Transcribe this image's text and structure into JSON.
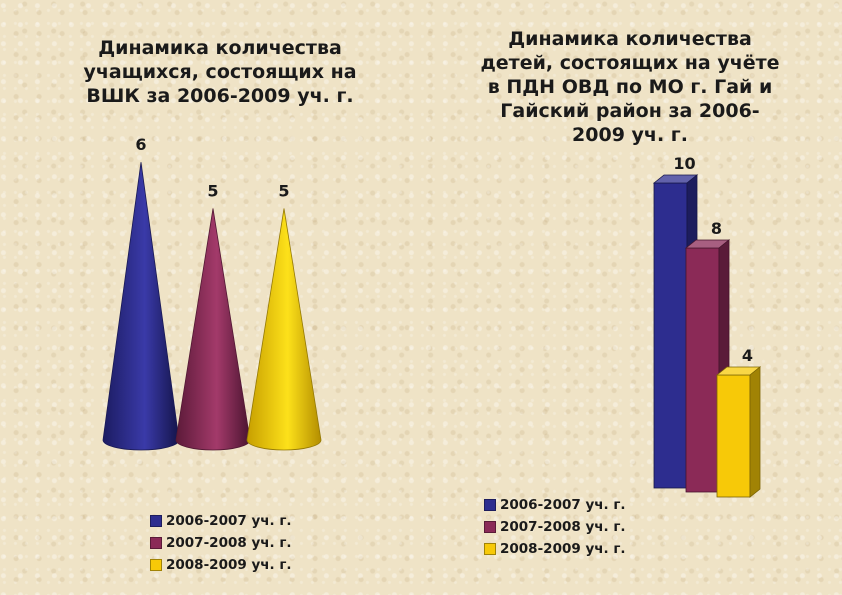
{
  "colors": {
    "series_0": "#2d2d8f",
    "series_1": "#8b2a57",
    "series_2": "#f7c908"
  },
  "chart_data": [
    {
      "type": "bar",
      "bar_shape": "cone",
      "title": "Динамика количества\nучащихся, состоящих на\nВШК за 2006-2009 уч. г.",
      "categories": [
        "2006-2007 уч. г.",
        "2007-2008 уч. г.",
        "2008-2009 уч. г."
      ],
      "values": [
        6,
        5,
        5
      ],
      "data_labels": [
        "6",
        "5",
        "5"
      ],
      "legend": [
        "2006-2007 уч. г.",
        "2007-2008 уч. г.",
        "2008-2009 уч. г."
      ],
      "legend_position": "bottom",
      "grid": false
    },
    {
      "type": "bar",
      "bar_shape": "3d-column",
      "title": "Динамика количества\nдетей, состоящих на учёте\nв ПДН ОВД по МО г. Гай и\nГайский район за 2006-\n2009 уч. г.",
      "categories": [
        "2006-2007 уч. г.",
        "2007-2008 уч. г.",
        "2008-2009 уч. г."
      ],
      "values": [
        10,
        8,
        4
      ],
      "data_labels": [
        "10",
        "8",
        "4"
      ],
      "legend": [
        "2006-2007 уч. г.",
        "2007-2008 уч. г.",
        "2008-2009 уч. г."
      ],
      "legend_position": "bottom",
      "grid": false
    }
  ]
}
